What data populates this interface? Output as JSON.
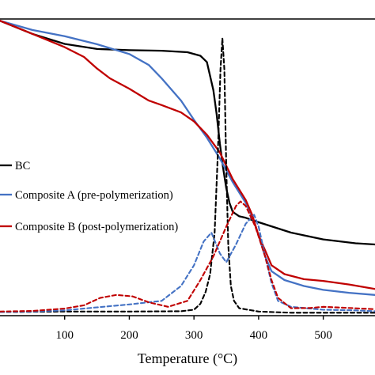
{
  "chart_data": {
    "type": "line",
    "xlabel": "Temperature (°C)",
    "ylabel": "",
    "xlim": [
      0,
      580
    ],
    "ylim": [
      0,
      100
    ],
    "x_ticks": [
      100,
      200,
      300,
      400,
      500
    ],
    "grid": false,
    "legend_placement": "left",
    "series": [
      {
        "name": "BC",
        "kind": "TG",
        "color": "#000000",
        "dash": "solid",
        "points": [
          [
            0,
            99.4
          ],
          [
            50,
            95
          ],
          [
            100,
            91.6
          ],
          [
            150,
            89.9
          ],
          [
            200,
            89.5
          ],
          [
            250,
            89.3
          ],
          [
            290,
            88.8
          ],
          [
            310,
            87.6
          ],
          [
            320,
            85.5
          ],
          [
            330,
            76
          ],
          [
            335,
            68
          ],
          [
            340,
            58
          ],
          [
            345,
            50
          ],
          [
            350,
            43
          ],
          [
            355,
            38
          ],
          [
            360,
            35
          ],
          [
            370,
            33.5
          ],
          [
            380,
            33
          ],
          [
            400,
            31.5
          ],
          [
            450,
            28
          ],
          [
            500,
            25.7
          ],
          [
            550,
            24.4
          ],
          [
            580,
            24
          ]
        ]
      },
      {
        "name": "Composite A (pre-polymerization)",
        "kind": "TG",
        "color": "#4472C4",
        "dash": "solid",
        "points": [
          [
            0,
            99.4
          ],
          [
            50,
            96.3
          ],
          [
            100,
            94.2
          ],
          [
            150,
            91.5
          ],
          [
            200,
            88.2
          ],
          [
            230,
            84.5
          ],
          [
            250,
            80
          ],
          [
            280,
            72.5
          ],
          [
            300,
            66
          ],
          [
            320,
            60
          ],
          [
            340,
            53
          ],
          [
            360,
            45
          ],
          [
            380,
            38
          ],
          [
            390,
            33.5
          ],
          [
            400,
            27
          ],
          [
            410,
            20
          ],
          [
            420,
            15
          ],
          [
            440,
            12
          ],
          [
            470,
            10
          ],
          [
            500,
            8.7
          ],
          [
            540,
            7.7
          ],
          [
            580,
            7
          ]
        ]
      },
      {
        "name": "Composite B (post-polymerization)",
        "kind": "TG",
        "color": "#C00000",
        "dash": "solid",
        "points": [
          [
            0,
            99.4
          ],
          [
            50,
            95
          ],
          [
            100,
            90.5
          ],
          [
            130,
            87.2
          ],
          [
            150,
            83.3
          ],
          [
            170,
            80
          ],
          [
            200,
            76.5
          ],
          [
            230,
            72.5
          ],
          [
            250,
            71
          ],
          [
            280,
            68.5
          ],
          [
            300,
            65.5
          ],
          [
            320,
            61
          ],
          [
            340,
            55
          ],
          [
            360,
            46
          ],
          [
            380,
            39
          ],
          [
            390,
            34
          ],
          [
            400,
            27
          ],
          [
            410,
            22
          ],
          [
            420,
            17
          ],
          [
            440,
            14
          ],
          [
            470,
            12.3
          ],
          [
            500,
            11.7
          ],
          [
            540,
            10.5
          ],
          [
            580,
            9
          ]
        ]
      },
      {
        "name": "BC",
        "kind": "DTG",
        "color": "#000000",
        "dash": "dashed",
        "points": [
          [
            0,
            1.2
          ],
          [
            100,
            1.4
          ],
          [
            200,
            1.4
          ],
          [
            280,
            1.5
          ],
          [
            300,
            2
          ],
          [
            310,
            4
          ],
          [
            318,
            8
          ],
          [
            325,
            14
          ],
          [
            332,
            28
          ],
          [
            337,
            55
          ],
          [
            341,
            83
          ],
          [
            344,
            93.5
          ],
          [
            347,
            83
          ],
          [
            350,
            50
          ],
          [
            353,
            24
          ],
          [
            357,
            10
          ],
          [
            362,
            5
          ],
          [
            370,
            2.5
          ],
          [
            400,
            1.4
          ],
          [
            450,
            1
          ],
          [
            500,
            1
          ],
          [
            580,
            1
          ]
        ]
      },
      {
        "name": "Composite A (pre-polymerization)",
        "kind": "DTG",
        "color": "#4472C4",
        "dash": "dashed",
        "points": [
          [
            0,
            1.2
          ],
          [
            50,
            1.4
          ],
          [
            100,
            1.8
          ],
          [
            150,
            2.8
          ],
          [
            200,
            3.8
          ],
          [
            250,
            5
          ],
          [
            280,
            10
          ],
          [
            300,
            17
          ],
          [
            315,
            25
          ],
          [
            327,
            28
          ],
          [
            340,
            21
          ],
          [
            350,
            18
          ],
          [
            365,
            24
          ],
          [
            380,
            31
          ],
          [
            393,
            34
          ],
          [
            400,
            30
          ],
          [
            410,
            20
          ],
          [
            420,
            11
          ],
          [
            430,
            5
          ],
          [
            450,
            3
          ],
          [
            500,
            2
          ],
          [
            550,
            1.8
          ],
          [
            580,
            1.5
          ]
        ]
      },
      {
        "name": "Composite B (post-polymerization)",
        "kind": "DTG",
        "color": "#C00000",
        "dash": "dashed",
        "points": [
          [
            0,
            1.4
          ],
          [
            50,
            1.6
          ],
          [
            100,
            2.4
          ],
          [
            130,
            3.5
          ],
          [
            155,
            6
          ],
          [
            180,
            7
          ],
          [
            205,
            6.5
          ],
          [
            230,
            4.5
          ],
          [
            260,
            3
          ],
          [
            290,
            5
          ],
          [
            310,
            12
          ],
          [
            330,
            20
          ],
          [
            350,
            30
          ],
          [
            365,
            37
          ],
          [
            372,
            38.5
          ],
          [
            380,
            37
          ],
          [
            395,
            30
          ],
          [
            410,
            20
          ],
          [
            420,
            12
          ],
          [
            430,
            6
          ],
          [
            450,
            2.5
          ],
          [
            480,
            2.6
          ],
          [
            500,
            3
          ],
          [
            530,
            2.7
          ],
          [
            580,
            2.2
          ]
        ]
      }
    ]
  }
}
